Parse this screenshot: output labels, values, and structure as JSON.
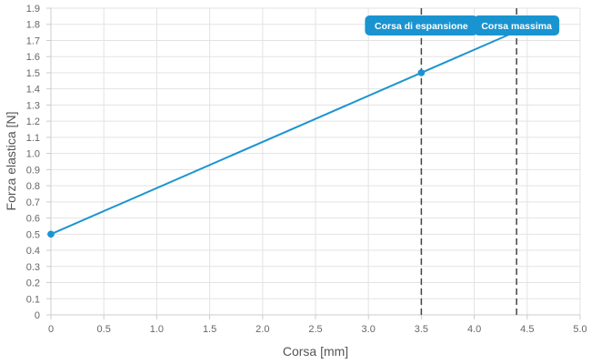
{
  "chart_data": {
    "type": "line",
    "title": "",
    "xlabel": "Corsa [mm]",
    "ylabel": "Forza elastica [N]",
    "xlim": [
      0,
      5.0
    ],
    "ylim": [
      0,
      1.9
    ],
    "x_ticks": [
      "0",
      "0.5",
      "1.0",
      "1.5",
      "2.0",
      "2.5",
      "3.0",
      "3.5",
      "4.0",
      "4.5",
      "5.0"
    ],
    "y_ticks": [
      "0",
      "0.1",
      "0.2",
      "0.3",
      "0.4",
      "0.5",
      "0.6",
      "0.7",
      "0.8",
      "0.9",
      "1.0",
      "1.1",
      "1.2",
      "1.3",
      "1.4",
      "1.5",
      "1.6",
      "1.7",
      "1.8",
      "1.9"
    ],
    "grid": true,
    "series": [
      {
        "color": "#1a94d0",
        "points": [
          {
            "x": 0,
            "y": 0.5
          },
          {
            "x": 3.5,
            "y": 1.5
          },
          {
            "x": 4.4,
            "y": 1.757
          }
        ],
        "markers": [
          {
            "x": 0,
            "y": 0.5
          },
          {
            "x": 3.5,
            "y": 1.5
          }
        ]
      }
    ],
    "annotations": [
      {
        "x": 3.5,
        "label": "Corsa di espansione"
      },
      {
        "x": 4.4,
        "label": "Corsa massima"
      }
    ],
    "colors": {
      "line": "#1a94d0",
      "annotation_fill": "#1a94d0",
      "annotation_line": "#444444",
      "grid": "#e3e3e3",
      "axis": "#cccccc"
    }
  }
}
